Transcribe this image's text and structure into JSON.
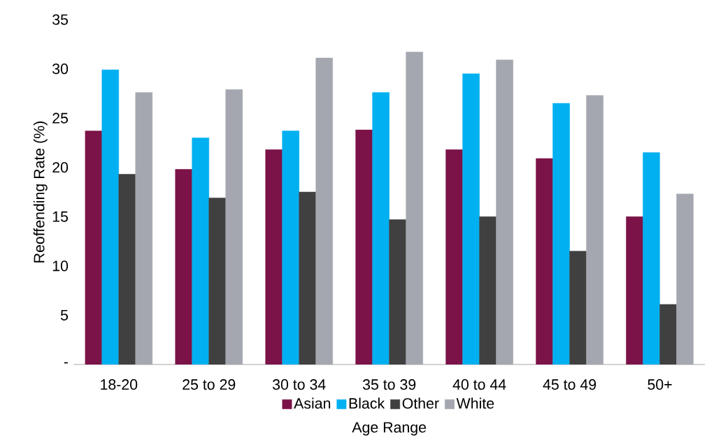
{
  "chart_data": {
    "type": "bar",
    "xlabel": "Age Range",
    "ylabel": "Reoffending Rate (%)",
    "categories": [
      "18-20",
      "25 to 29",
      "30 to 34",
      "35 to 39",
      "40 to 44",
      "45 to 49",
      "50+"
    ],
    "series": [
      {
        "name": "Asian",
        "color": "#7b1348",
        "values": [
          23.7,
          19.8,
          21.8,
          23.8,
          21.8,
          20.9,
          15.0
        ]
      },
      {
        "name": "Black",
        "color": "#00b0f0",
        "values": [
          29.9,
          23.0,
          23.7,
          27.6,
          29.5,
          26.5,
          21.5
        ]
      },
      {
        "name": "Other",
        "color": "#404040",
        "values": [
          19.3,
          16.9,
          17.5,
          14.7,
          15.0,
          11.5,
          6.1
        ]
      },
      {
        "name": "White",
        "color": "#a5a7b0",
        "values": [
          27.6,
          27.9,
          31.1,
          31.7,
          30.9,
          27.3,
          17.3
        ]
      }
    ],
    "ylim": [
      0,
      35
    ],
    "yticks": [
      {
        "value": 0,
        "label": "-"
      },
      5,
      10,
      15,
      20,
      25,
      30,
      35
    ],
    "legend": "bottom"
  }
}
